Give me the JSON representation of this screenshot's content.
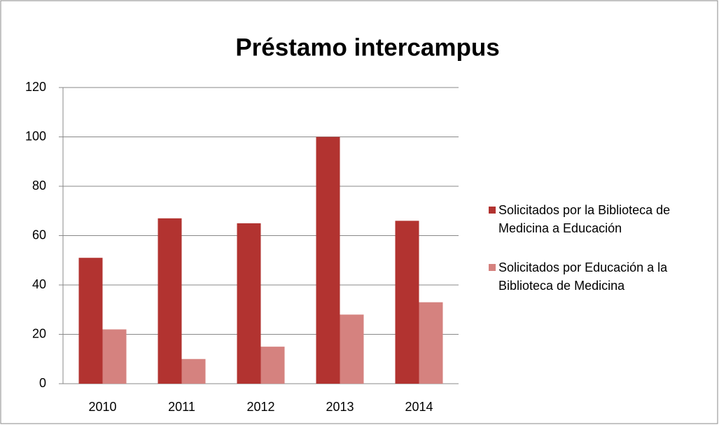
{
  "chart_data": {
    "type": "bar",
    "title": "Préstamo intercampus",
    "categories": [
      "2010",
      "2011",
      "2012",
      "2013",
      "2014"
    ],
    "series": [
      {
        "name": "Solicitados por la Biblioteca de Medicina a Educación",
        "color": "#b23330",
        "values": [
          51,
          67,
          65,
          100,
          66
        ]
      },
      {
        "name": "Solicitados por Educación a la Biblioteca de Medicina",
        "color": "#d5827f",
        "values": [
          22,
          10,
          15,
          28,
          33
        ]
      }
    ],
    "ylim": [
      0,
      120
    ],
    "yticks": [
      0,
      20,
      40,
      60,
      80,
      100,
      120
    ],
    "grid": true,
    "legend": "right"
  }
}
